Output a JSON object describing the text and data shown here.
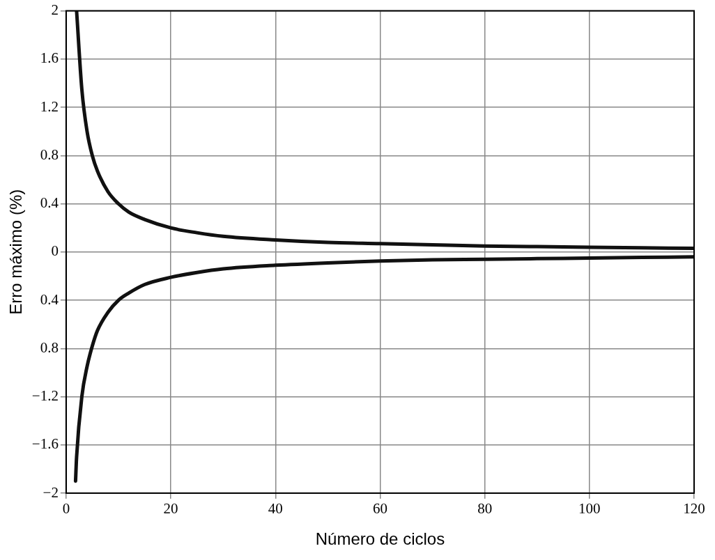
{
  "chart_data": {
    "type": "line",
    "xlabel": "Número de ciclos",
    "ylabel": "Erro máximo (%)",
    "xlim": [
      0,
      120
    ],
    "xticks": [
      0,
      20,
      40,
      60,
      80,
      100,
      120
    ],
    "ylim": [
      -2,
      2
    ],
    "yticks": [
      {
        "value": -2,
        "label": "−2"
      },
      {
        "value": -1.6,
        "label": "−1.6"
      },
      {
        "value": -1.2,
        "label": "−1.2"
      },
      {
        "value": -0.8,
        "label": "0.8"
      },
      {
        "value": -0.4,
        "label": "0.4"
      },
      0,
      0.4,
      0.8,
      1.2,
      1.6,
      2
    ],
    "grid": true,
    "legend": false,
    "marker": "none",
    "line_style": "solid",
    "series": [
      {
        "color": "#111111",
        "x": [
          2,
          3,
          4,
          5,
          6,
          8,
          10,
          12,
          15,
          20,
          25,
          30,
          40,
          50,
          60,
          70,
          80,
          90,
          100,
          110,
          120
        ],
        "values": [
          2,
          1.35,
          1.0,
          0.8,
          0.67,
          0.5,
          0.4,
          0.33,
          0.27,
          0.2,
          0.16,
          0.13,
          0.1,
          0.08,
          0.07,
          0.06,
          0.05,
          0.045,
          0.04,
          0.035,
          0.03
        ]
      },
      {
        "color": "#111111",
        "x": [
          1.8,
          2,
          3,
          4,
          5,
          6,
          8,
          10,
          12,
          15,
          20,
          25,
          30,
          40,
          50,
          60,
          70,
          80,
          90,
          100,
          110,
          120
        ],
        "values": [
          -1.9,
          -1.7,
          -1.2,
          -0.95,
          -0.78,
          -0.65,
          -0.5,
          -0.4,
          -0.34,
          -0.27,
          -0.21,
          -0.17,
          -0.14,
          -0.11,
          -0.09,
          -0.075,
          -0.065,
          -0.06,
          -0.055,
          -0.05,
          -0.045,
          -0.04
        ]
      }
    ]
  }
}
